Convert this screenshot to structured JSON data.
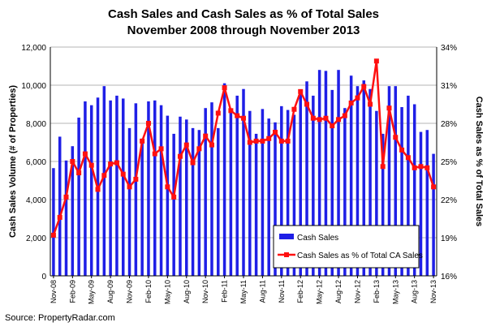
{
  "chart_data": {
    "type": "bar",
    "title": "Cash Sales and Cash Sales as % of Total Sales",
    "subtitle": "November 2008 through November 2013",
    "ylabel": "Cash Sales Volume (# of Properties)",
    "y2label": "Cash Sales as % of Total Sales",
    "source": "Source: PropertyRadar.com",
    "ylim": [
      0,
      12000
    ],
    "y2lim": [
      16,
      34
    ],
    "yticks": [
      "0",
      "2,000",
      "4,000",
      "6,000",
      "8,000",
      "10,000",
      "12,000"
    ],
    "y2ticks": [
      "16%",
      "19%",
      "22%",
      "25%",
      "28%",
      "31%",
      "34%"
    ],
    "xtick_labels": [
      "Nov-08",
      "Feb-09",
      "May-09",
      "Aug-09",
      "Nov-09",
      "Feb-10",
      "May-10",
      "Aug-10",
      "Nov-10",
      "Feb-11",
      "May-11",
      "Aug-11",
      "Nov-11",
      "Feb-12",
      "May-12",
      "Aug-12",
      "Nov-12",
      "Feb-13",
      "May-13",
      "Aug-13",
      "Nov-13"
    ],
    "grid": true,
    "legend_position": "bottom-right",
    "series": [
      {
        "name": "Cash Sales",
        "kind": "bar",
        "axis": "left",
        "color": "#1f1fe6",
        "values": [
          5650,
          7300,
          6050,
          6800,
          8300,
          9150,
          8950,
          9350,
          9950,
          9200,
          9450,
          9300,
          7750,
          9050,
          7200,
          9150,
          9200,
          8950,
          8400,
          7450,
          8350,
          8200,
          7750,
          7650,
          8800,
          9100,
          7750,
          10100,
          8750,
          9450,
          9800,
          8650,
          7450,
          8750,
          8250,
          8050,
          8900,
          8700,
          8450,
          9650,
          10200,
          9450,
          10800,
          10750,
          9750,
          10800,
          8800,
          10500,
          9950,
          10250,
          9800,
          8650,
          7450,
          9950,
          9950,
          8850,
          9450,
          9000,
          7550,
          7650,
          6400
        ]
      },
      {
        "name": "Cash Sales as % of Total CA Sales",
        "kind": "line",
        "axis": "right",
        "color": "#ff1010",
        "values": [
          19.2,
          20.6,
          22.2,
          25.0,
          24.1,
          25.6,
          24.7,
          22.8,
          23.9,
          24.8,
          24.9,
          24.0,
          23.0,
          23.6,
          26.6,
          28.0,
          25.6,
          26.0,
          23.0,
          22.2,
          25.4,
          26.3,
          24.9,
          26.0,
          27.0,
          26.3,
          28.8,
          30.8,
          29.0,
          28.6,
          28.4,
          26.5,
          26.6,
          26.6,
          26.8,
          27.3,
          26.6,
          26.6,
          29.1,
          30.5,
          29.5,
          28.4,
          28.3,
          28.4,
          27.8,
          28.3,
          28.6,
          29.6,
          30.0,
          30.9,
          29.5,
          32.9,
          24.6,
          29.2,
          26.9,
          25.9,
          25.3,
          24.5,
          24.6,
          24.5,
          23.0
        ]
      }
    ]
  }
}
